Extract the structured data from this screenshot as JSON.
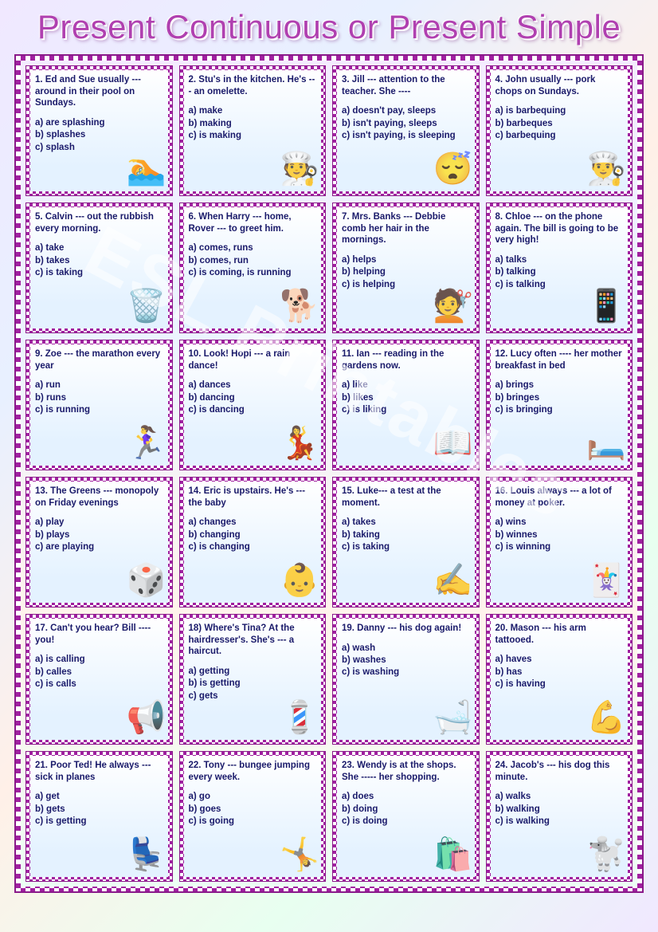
{
  "title": "Present Continuous or Present Simple",
  "watermark": "ESL Printables",
  "colors": {
    "title_color": "#b040b0",
    "border_check_dark": "#a020a0",
    "border_check_light": "#ffffff",
    "text_color": "#1a1a6a"
  },
  "cards": [
    {
      "q": "1. Ed and Sue usually --- around in their pool on Sundays.",
      "a": "a) are splashing",
      "b": "b) splashes",
      "c": "c) splash",
      "emoji": "🏊"
    },
    {
      "q": "2. Stu's in the kitchen. He's --- an omelette.",
      "a": "a) make",
      "b": "b) making",
      "c": "c) is making",
      "emoji": "🧑‍🍳"
    },
    {
      "q": "3. Jill --- attention to the teacher. She ----",
      "a": "a) doesn't pay, sleeps",
      "b": "b) isn't paying, sleeps",
      "c": "c) isn't paying, is sleeping",
      "emoji": "😴"
    },
    {
      "q": "4. John usually --- pork chops on Sundays.",
      "a": "a) is barbequing",
      "b": "b) barbeques",
      "c": "c) barbequing",
      "emoji": "👨‍🍳"
    },
    {
      "q": "5. Calvin --- out the rubbish every morning.",
      "a": "a) take",
      "b": "b) takes",
      "c": "c) is taking",
      "emoji": "🗑️"
    },
    {
      "q": "6. When Harry --- home, Rover --- to greet him.",
      "a": "a) comes, runs",
      "b": "b) comes, run",
      "c": "c) is coming, is running",
      "emoji": "🐕"
    },
    {
      "q": "7. Mrs. Banks --- Debbie comb her hair in the mornings.",
      "a": "a) helps",
      "b": "b) helping",
      "c": "c) is helping",
      "emoji": "💇"
    },
    {
      "q": "8. Chloe --- on the phone again. The bill is going to be very high!",
      "a": "a) talks",
      "b": "b) talking",
      "c": "c) is talking",
      "emoji": "📱"
    },
    {
      "q": "9. Zoe --- the marathon every year",
      "a": "a) run",
      "b": "b) runs",
      "c": "c) is running",
      "emoji": "🏃‍♀️"
    },
    {
      "q": "10. Look! Hopi --- a rain dance!",
      "a": "a) dances",
      "b": "b) dancing",
      "c": "c) is dancing",
      "emoji": "💃"
    },
    {
      "q": "11. Ian --- reading in the gardens now.",
      "a": "a) like",
      "b": "b) likes",
      "c": "c) is liking",
      "emoji": "📖"
    },
    {
      "q": "12. Lucy often ---- her mother breakfast in bed",
      "a": "a) brings",
      "b": "b) bringes",
      "c": "c) is bringing",
      "emoji": "🛏️"
    },
    {
      "q": "13. The Greens --- monopoly on Friday evenings",
      "a": "a) play",
      "b": "b) plays",
      "c": "c) are playing",
      "emoji": "🎲"
    },
    {
      "q": "14. Eric is upstairs. He's --- the baby",
      "a": "a) changes",
      "b": "b) changing",
      "c": "c) is changing",
      "emoji": "👶"
    },
    {
      "q": "15. Luke--- a test at the moment.",
      "a": "a) takes",
      "b": "b) taking",
      "c": "c) is taking",
      "emoji": "✍️"
    },
    {
      "q": "16. Louis always --- a lot of money at poker.",
      "a": "a) wins",
      "b": "b) winnes",
      "c": "c) is winning",
      "emoji": "🃏"
    },
    {
      "q": "17. Can't you hear? Bill ---- you!",
      "a": "a) is calling",
      "b": "b) calles",
      "c": "c) is calls",
      "emoji": "📢"
    },
    {
      "q": "18) Where's Tina? At the hairdresser's. She's --- a haircut.",
      "a": "a) getting",
      "b": "b) is getting",
      "c": "c) gets",
      "emoji": "💈"
    },
    {
      "q": "19. Danny --- his dog again!",
      "a": "a) wash",
      "b": "b) washes",
      "c": "c) is washing",
      "emoji": "🛁"
    },
    {
      "q": "20. Mason --- his arm tattooed.",
      "a": "a) haves",
      "b": "b) has",
      "c": "c) is having",
      "emoji": "💪"
    },
    {
      "q": "21. Poor Ted! He always --- sick in planes",
      "a": "a) get",
      "b": "b) gets",
      "c": "c) is getting",
      "emoji": "💺"
    },
    {
      "q": "22. Tony --- bungee jumping every week.",
      "a": "a) go",
      "b": "b) goes",
      "c": "c) is going",
      "emoji": "🤸"
    },
    {
      "q": "23. Wendy is at the shops. She ----- her shopping.",
      "a": "a) does",
      "b": "b) doing",
      "c": "c) is doing",
      "emoji": "🛍️"
    },
    {
      "q": "24. Jacob's --- his dog this minute.",
      "a": "a) walks",
      "b": "b) walking",
      "c": "c) is walking",
      "emoji": "🐩"
    }
  ]
}
